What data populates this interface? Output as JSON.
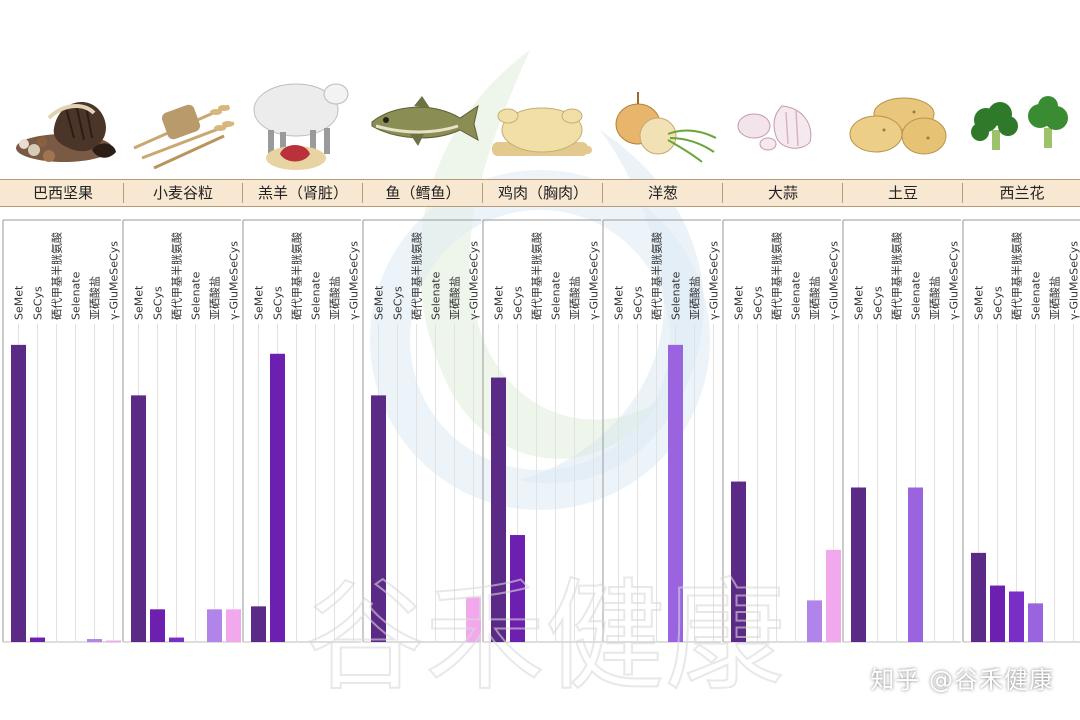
{
  "foods": [
    {
      "name": "巴西坚果",
      "art": "brazil-nuts-icon"
    },
    {
      "name": "小麦谷粒",
      "art": "wheat-icon"
    },
    {
      "name": "羔羊（肾脏）",
      "art": "lamb-kidney-icon"
    },
    {
      "name": "鱼（鳕鱼）",
      "art": "cod-fish-icon"
    },
    {
      "name": "鸡肉（胸肉）",
      "art": "chicken-breast-icon"
    },
    {
      "name": "洋葱",
      "art": "onion-icon"
    },
    {
      "name": "大蒜",
      "art": "garlic-icon"
    },
    {
      "name": "土豆",
      "art": "potato-icon"
    },
    {
      "name": "西兰花",
      "art": "broccoli-icon"
    }
  ],
  "watermark": "知乎 @谷禾健康",
  "watermark_big": "谷禾健康",
  "chart_data": {
    "type": "bar",
    "panels": [
      "巴西坚果",
      "小麦谷粒",
      "羔羊（肾脏）",
      "鱼（鳕鱼）",
      "鸡肉（胸肉）",
      "洋葱",
      "大蒜",
      "土豆",
      "西兰花"
    ],
    "categories": [
      "SeMet",
      "SeCys",
      "硒代甲基半胱氨酸",
      "Selenate",
      "亚硒酸盐",
      "γ-GluMeSeCys"
    ],
    "series_colors": [
      "#5b2a86",
      "#6d1fb0",
      "#7a2ec8",
      "#9a63e0",
      "#b184ea",
      "#f2a8ec"
    ],
    "values": [
      [
        100,
        1.5,
        0,
        0,
        1,
        0.5
      ],
      [
        83,
        11,
        1.5,
        0,
        11,
        11
      ],
      [
        12,
        97,
        0,
        0,
        0,
        0
      ],
      [
        83,
        0,
        0,
        0,
        0,
        15
      ],
      [
        89,
        36,
        0,
        0,
        0,
        0
      ],
      [
        0,
        0,
        0,
        100,
        0,
        0
      ],
      [
        54,
        0,
        0,
        0,
        14,
        31
      ],
      [
        52,
        0,
        0,
        52,
        0,
        0
      ],
      [
        30,
        19,
        17,
        13,
        0,
        0
      ]
    ],
    "ylim": [
      0,
      105
    ],
    "grid": false,
    "legend": "none"
  }
}
